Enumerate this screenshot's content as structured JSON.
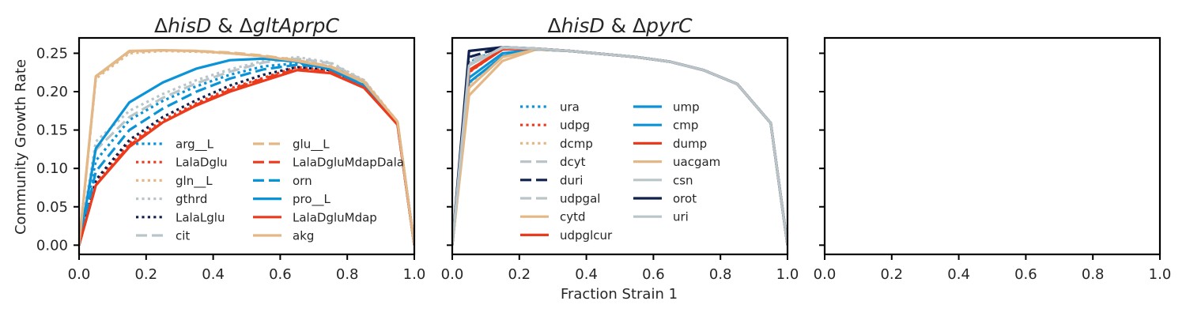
{
  "figure": {
    "ylabel": "Community Growth Rate",
    "xlabel": "Fraction Strain 1"
  },
  "chart_data": [
    {
      "type": "line",
      "title_parts": [
        {
          "text": "Δ",
          "italic": false
        },
        {
          "text": "hisD",
          "italic": true
        },
        {
          "text": " & Δ",
          "italic": false
        },
        {
          "text": "gltAprpC",
          "italic": true
        }
      ],
      "xlim": [
        0,
        1
      ],
      "ylim": [
        -0.012,
        0.27
      ],
      "xticks": [
        0,
        0.2,
        0.4,
        0.6,
        0.8,
        1.0
      ],
      "xtick_labels": [
        "0.0",
        "0.2",
        "0.4",
        "0.6",
        "0.8",
        "1.0"
      ],
      "yticks": [
        0,
        0.05,
        0.1,
        0.15,
        0.2,
        0.25
      ],
      "ytick_labels": [
        "0.00",
        "0.05",
        "0.10",
        "0.15",
        "0.20",
        "0.25"
      ],
      "legend_placement": "lower-center",
      "x": [
        0,
        0.05,
        0.15,
        0.25,
        0.35,
        0.45,
        0.55,
        0.65,
        0.75,
        0.85,
        0.95,
        1.0
      ],
      "series": [
        {
          "name": "arg__L",
          "style": "dotted",
          "color": "#0a93d7",
          "values": [
            0,
            0.11,
            0.163,
            0.188,
            0.207,
            0.222,
            0.233,
            0.237,
            0.233,
            0.212,
            0.158,
            0
          ]
        },
        {
          "name": "LalaDglu",
          "style": "dotted",
          "color": "#ec3a1d",
          "values": [
            0,
            0.082,
            0.133,
            0.163,
            0.185,
            0.204,
            0.218,
            0.232,
            0.227,
            0.207,
            0.158,
            0
          ]
        },
        {
          "name": "gln__L",
          "style": "dotted",
          "color": "#e3b886",
          "values": [
            0,
            0.217,
            0.25,
            0.253,
            0.252,
            0.25,
            0.246,
            0.24,
            0.233,
            0.215,
            0.161,
            0
          ]
        },
        {
          "name": "gthrd",
          "style": "dotted",
          "color": "#b9c5c8",
          "values": [
            0,
            0.135,
            0.175,
            0.197,
            0.215,
            0.229,
            0.24,
            0.245,
            0.238,
            0.215,
            0.16,
            0
          ]
        },
        {
          "name": "LalaLglu",
          "style": "dotted",
          "color": "#10214d",
          "values": [
            0,
            0.085,
            0.137,
            0.167,
            0.189,
            0.208,
            0.222,
            0.232,
            0.228,
            0.208,
            0.158,
            0
          ]
        },
        {
          "name": "cit",
          "style": "dashed",
          "color": "#b9c5c8",
          "values": [
            0,
            0.124,
            0.167,
            0.192,
            0.211,
            0.226,
            0.238,
            0.243,
            0.237,
            0.214,
            0.16,
            0
          ]
        },
        {
          "name": "glu__L",
          "style": "dashed",
          "color": "#e3b886",
          "values": [
            0,
            0.219,
            0.252,
            0.254,
            0.253,
            0.251,
            0.247,
            0.241,
            0.233,
            0.213,
            0.161,
            0
          ]
        },
        {
          "name": "LalaDgluMdapDala",
          "style": "dashed",
          "color": "#ec3a1d",
          "values": [
            0,
            0.078,
            0.13,
            0.16,
            0.183,
            0.202,
            0.217,
            0.229,
            0.226,
            0.206,
            0.157,
            0
          ]
        },
        {
          "name": "orn",
          "style": "dashed",
          "color": "#0a93d7",
          "values": [
            0,
            0.096,
            0.15,
            0.178,
            0.2,
            0.217,
            0.229,
            0.235,
            0.231,
            0.21,
            0.158,
            0
          ]
        },
        {
          "name": "pro__L",
          "style": "solid",
          "color": "#0a93d7",
          "values": [
            0,
            0.126,
            0.186,
            0.212,
            0.23,
            0.241,
            0.243,
            0.239,
            0.229,
            0.208,
            0.159,
            0
          ]
        },
        {
          "name": "LalaDgluMdap",
          "style": "solid",
          "color": "#ec3a1d",
          "values": [
            0,
            0.078,
            0.128,
            0.16,
            0.182,
            0.2,
            0.214,
            0.228,
            0.224,
            0.205,
            0.157,
            0
          ]
        },
        {
          "name": "akg",
          "style": "solid",
          "color": "#e3b886",
          "values": [
            0,
            0.22,
            0.253,
            0.254,
            0.253,
            0.25,
            0.246,
            0.24,
            0.232,
            0.212,
            0.161,
            0
          ]
        }
      ]
    },
    {
      "type": "line",
      "title_parts": [
        {
          "text": "Δ",
          "italic": false
        },
        {
          "text": "hisD",
          "italic": true
        },
        {
          "text": " & Δ",
          "italic": false
        },
        {
          "text": "pyrC",
          "italic": true
        }
      ],
      "xlim": [
        0,
        1
      ],
      "ylim": [
        -0.012,
        0.27
      ],
      "xticks": [
        0,
        0.2,
        0.4,
        0.6,
        0.8,
        1.0
      ],
      "xtick_labels": [
        "0.0",
        "0.2",
        "0.4",
        "0.6",
        "0.8",
        "1.0"
      ],
      "yticks": [
        0,
        0.05,
        0.1,
        0.15,
        0.2,
        0.25
      ],
      "ytick_labels": [],
      "legend_placement": "center",
      "x": [
        0,
        0.05,
        0.15,
        0.25,
        0.35,
        0.45,
        0.55,
        0.65,
        0.75,
        0.85,
        0.95,
        1.0
      ],
      "series": [
        {
          "name": "ura",
          "style": "dotted",
          "color": "#0a93d7",
          "values": [
            0,
            0.238,
            0.258,
            0.256,
            0.253,
            0.249,
            0.245,
            0.239,
            0.228,
            0.21,
            0.159,
            0
          ]
        },
        {
          "name": "udpg",
          "style": "dotted",
          "color": "#ec3a1d",
          "values": [
            0,
            0.225,
            0.256,
            0.256,
            0.253,
            0.249,
            0.245,
            0.239,
            0.228,
            0.21,
            0.159,
            0
          ]
        },
        {
          "name": "dcmp",
          "style": "dotted",
          "color": "#e3b886",
          "values": [
            0,
            0.21,
            0.248,
            0.255,
            0.253,
            0.249,
            0.245,
            0.239,
            0.228,
            0.21,
            0.159,
            0
          ]
        },
        {
          "name": "dcyt",
          "style": "dashed",
          "color": "#b9c5c8",
          "values": [
            0,
            0.24,
            0.258,
            0.256,
            0.253,
            0.249,
            0.245,
            0.239,
            0.228,
            0.21,
            0.159,
            0
          ]
        },
        {
          "name": "duri",
          "style": "dashed",
          "color": "#10214d",
          "values": [
            0,
            0.245,
            0.258,
            0.256,
            0.253,
            0.249,
            0.245,
            0.239,
            0.228,
            0.21,
            0.159,
            0
          ]
        },
        {
          "name": "udpgal",
          "style": "dashed",
          "color": "#b9c5c8",
          "values": [
            0,
            0.228,
            0.257,
            0.256,
            0.253,
            0.249,
            0.245,
            0.239,
            0.228,
            0.21,
            0.159,
            0
          ]
        },
        {
          "name": "cytd",
          "style": "solid",
          "color": "#e3b886",
          "values": [
            0,
            0.195,
            0.24,
            0.255,
            0.253,
            0.249,
            0.245,
            0.239,
            0.228,
            0.21,
            0.159,
            0
          ]
        },
        {
          "name": "udpglcur",
          "style": "solid",
          "color": "#ec3a1d",
          "values": [
            0,
            0.228,
            0.255,
            0.256,
            0.253,
            0.249,
            0.245,
            0.239,
            0.228,
            0.21,
            0.159,
            0
          ]
        },
        {
          "name": "ump",
          "style": "solid",
          "color": "#0a93d7",
          "values": [
            0,
            0.212,
            0.246,
            0.255,
            0.253,
            0.249,
            0.245,
            0.239,
            0.228,
            0.21,
            0.159,
            0
          ]
        },
        {
          "name": "cmp",
          "style": "solid",
          "color": "#0a93d7",
          "values": [
            0,
            0.218,
            0.25,
            0.255,
            0.253,
            0.249,
            0.245,
            0.239,
            0.228,
            0.21,
            0.159,
            0
          ]
        },
        {
          "name": "dump",
          "style": "solid",
          "color": "#ec3a1d",
          "values": [
            0,
            0.226,
            0.255,
            0.256,
            0.253,
            0.249,
            0.245,
            0.239,
            0.228,
            0.21,
            0.159,
            0
          ]
        },
        {
          "name": "uacgam",
          "style": "solid",
          "color": "#e3b886",
          "values": [
            0,
            0.205,
            0.245,
            0.255,
            0.253,
            0.249,
            0.245,
            0.239,
            0.228,
            0.21,
            0.159,
            0
          ]
        },
        {
          "name": "csn",
          "style": "solid",
          "color": "#b9c5c8",
          "values": [
            0,
            0.236,
            0.257,
            0.256,
            0.253,
            0.249,
            0.245,
            0.239,
            0.228,
            0.21,
            0.159,
            0
          ]
        },
        {
          "name": "orot",
          "style": "solid",
          "color": "#10214d",
          "values": [
            0,
            0.253,
            0.258,
            0.256,
            0.253,
            0.249,
            0.245,
            0.239,
            0.228,
            0.21,
            0.159,
            0
          ]
        },
        {
          "name": "uri",
          "style": "solid",
          "color": "#b9c5c8",
          "values": [
            0,
            0.234,
            0.258,
            0.256,
            0.253,
            0.249,
            0.245,
            0.239,
            0.228,
            0.21,
            0.159,
            0
          ]
        }
      ]
    },
    {
      "type": "line",
      "title_parts": [],
      "xlim": [
        0,
        1
      ],
      "ylim": [
        -0.012,
        0.27
      ],
      "xticks": [
        0,
        0.2,
        0.4,
        0.6,
        0.8,
        1.0
      ],
      "xtick_labels": [
        "0.0",
        "0.2",
        "0.4",
        "0.6",
        "0.8",
        "1.0"
      ],
      "yticks": [
        0,
        0.05,
        0.1,
        0.15,
        0.2,
        0.25
      ],
      "ytick_labels": [],
      "legend_placement": "",
      "x": [],
      "series": []
    }
  ]
}
